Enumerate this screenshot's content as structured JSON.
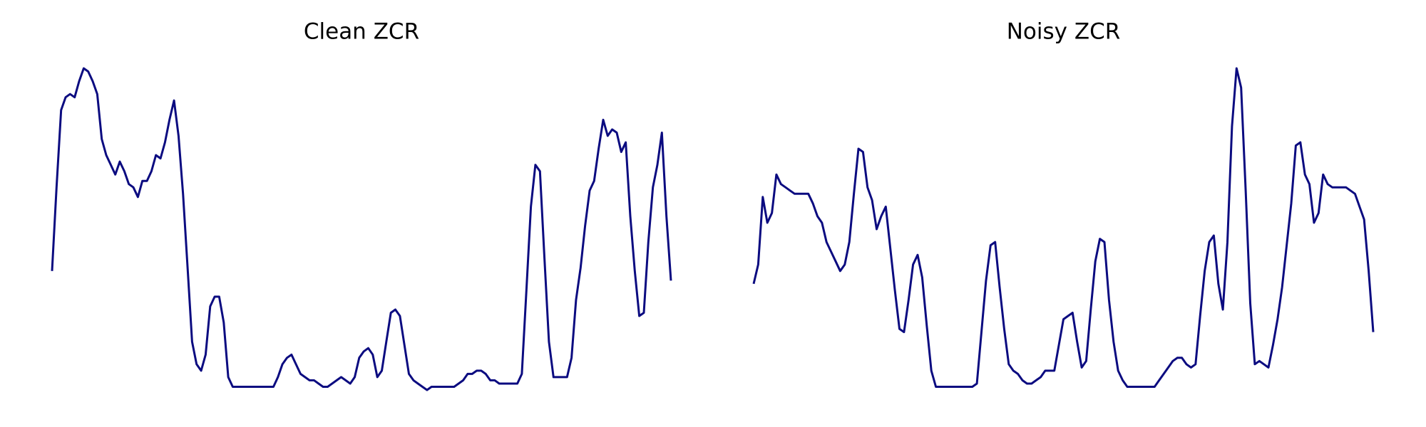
{
  "chart_data": [
    {
      "type": "line",
      "title": "Clean ZCR",
      "color": "#0b0b80",
      "ylim": [
        0,
        1
      ],
      "values": [
        0.37,
        0.63,
        0.87,
        0.91,
        0.92,
        0.91,
        0.96,
        1.0,
        0.99,
        0.96,
        0.92,
        0.78,
        0.73,
        0.7,
        0.67,
        0.71,
        0.68,
        0.64,
        0.63,
        0.6,
        0.65,
        0.65,
        0.68,
        0.73,
        0.72,
        0.77,
        0.84,
        0.9,
        0.79,
        0.61,
        0.38,
        0.15,
        0.08,
        0.06,
        0.11,
        0.26,
        0.29,
        0.29,
        0.21,
        0.04,
        0.01,
        0.01,
        0.01,
        0.01,
        0.01,
        0.01,
        0.01,
        0.01,
        0.01,
        0.01,
        0.04,
        0.08,
        0.1,
        0.11,
        0.08,
        0.05,
        0.04,
        0.03,
        0.03,
        0.02,
        0.01,
        0.01,
        0.02,
        0.03,
        0.04,
        0.03,
        0.02,
        0.04,
        0.1,
        0.12,
        0.13,
        0.11,
        0.04,
        0.06,
        0.15,
        0.24,
        0.25,
        0.23,
        0.14,
        0.05,
        0.03,
        0.02,
        0.01,
        0.0,
        0.01,
        0.01,
        0.01,
        0.01,
        0.01,
        0.01,
        0.02,
        0.03,
        0.05,
        0.05,
        0.06,
        0.06,
        0.05,
        0.03,
        0.03,
        0.02,
        0.02,
        0.02,
        0.02,
        0.02,
        0.05,
        0.31,
        0.57,
        0.7,
        0.68,
        0.41,
        0.15,
        0.04,
        0.04,
        0.04,
        0.04,
        0.1,
        0.28,
        0.38,
        0.51,
        0.62,
        0.65,
        0.75,
        0.84,
        0.79,
        0.81,
        0.8,
        0.74,
        0.77,
        0.54,
        0.37,
        0.23,
        0.24,
        0.46,
        0.63,
        0.7,
        0.8,
        0.54,
        0.34
      ]
    },
    {
      "type": "line",
      "title": "Noisy ZCR",
      "color": "#0b0b80",
      "ylim": [
        0,
        1
      ],
      "values": [
        0.33,
        0.39,
        0.6,
        0.52,
        0.55,
        0.67,
        0.64,
        0.63,
        0.62,
        0.61,
        0.61,
        0.61,
        0.61,
        0.58,
        0.54,
        0.52,
        0.46,
        0.43,
        0.4,
        0.37,
        0.39,
        0.46,
        0.61,
        0.75,
        0.74,
        0.63,
        0.59,
        0.5,
        0.54,
        0.57,
        0.44,
        0.31,
        0.19,
        0.18,
        0.28,
        0.39,
        0.42,
        0.35,
        0.2,
        0.06,
        0.01,
        0.01,
        0.01,
        0.01,
        0.01,
        0.01,
        0.01,
        0.01,
        0.01,
        0.02,
        0.18,
        0.34,
        0.45,
        0.46,
        0.32,
        0.19,
        0.08,
        0.06,
        0.05,
        0.03,
        0.02,
        0.02,
        0.03,
        0.04,
        0.06,
        0.06,
        0.06,
        0.14,
        0.22,
        0.23,
        0.24,
        0.15,
        0.07,
        0.09,
        0.25,
        0.4,
        0.47,
        0.46,
        0.28,
        0.15,
        0.06,
        0.03,
        0.01,
        0.01,
        0.01,
        0.01,
        0.01,
        0.01,
        0.01,
        0.03,
        0.05,
        0.07,
        0.09,
        0.1,
        0.1,
        0.08,
        0.07,
        0.08,
        0.23,
        0.37,
        0.46,
        0.48,
        0.33,
        0.25,
        0.46,
        0.82,
        1.0,
        0.94,
        0.62,
        0.27,
        0.08,
        0.09,
        0.08,
        0.07,
        0.14,
        0.22,
        0.32,
        0.45,
        0.58,
        0.76,
        0.77,
        0.67,
        0.64,
        0.52,
        0.55,
        0.67,
        0.64,
        0.63,
        0.63,
        0.63,
        0.63,
        0.62,
        0.61,
        0.57,
        0.53,
        0.37,
        0.18
      ]
    }
  ]
}
